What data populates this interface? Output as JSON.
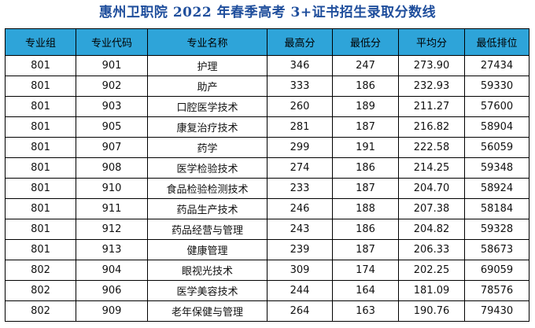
{
  "title": "惠州卫职院 2022 年春季高考 3+证书招生录取分数线",
  "colors": {
    "title": "#1f4e9c",
    "header_bg": "#2ea4d9"
  },
  "table": {
    "headers": [
      "专业组",
      "专业代码",
      "专业名称",
      "最高分",
      "最低分",
      "平均分",
      "最低排位"
    ],
    "rows": [
      [
        "801",
        "901",
        "护理",
        "346",
        "247",
        "273.90",
        "27434"
      ],
      [
        "801",
        "902",
        "助产",
        "333",
        "186",
        "232.93",
        "59330"
      ],
      [
        "801",
        "903",
        "口腔医学技术",
        "260",
        "189",
        "211.27",
        "57600"
      ],
      [
        "801",
        "905",
        "康复治疗技术",
        "281",
        "187",
        "216.82",
        "58904"
      ],
      [
        "801",
        "907",
        "药学",
        "299",
        "191",
        "222.58",
        "56059"
      ],
      [
        "801",
        "908",
        "医学检验技术",
        "274",
        "186",
        "214.25",
        "59348"
      ],
      [
        "801",
        "910",
        "食品检验检测技术",
        "233",
        "187",
        "204.70",
        "58924"
      ],
      [
        "801",
        "911",
        "药品生产技术",
        "246",
        "188",
        "207.38",
        "58184"
      ],
      [
        "801",
        "912",
        "药品经营与管理",
        "243",
        "186",
        "204.82",
        "59328"
      ],
      [
        "801",
        "913",
        "健康管理",
        "239",
        "187",
        "206.33",
        "58673"
      ],
      [
        "802",
        "904",
        "眼视光技术",
        "309",
        "174",
        "202.25",
        "69059"
      ],
      [
        "802",
        "906",
        "医学美容技术",
        "244",
        "164",
        "181.09",
        "78576"
      ],
      [
        "802",
        "909",
        "老年保健与管理",
        "264",
        "163",
        "190.76",
        "79430"
      ]
    ]
  }
}
